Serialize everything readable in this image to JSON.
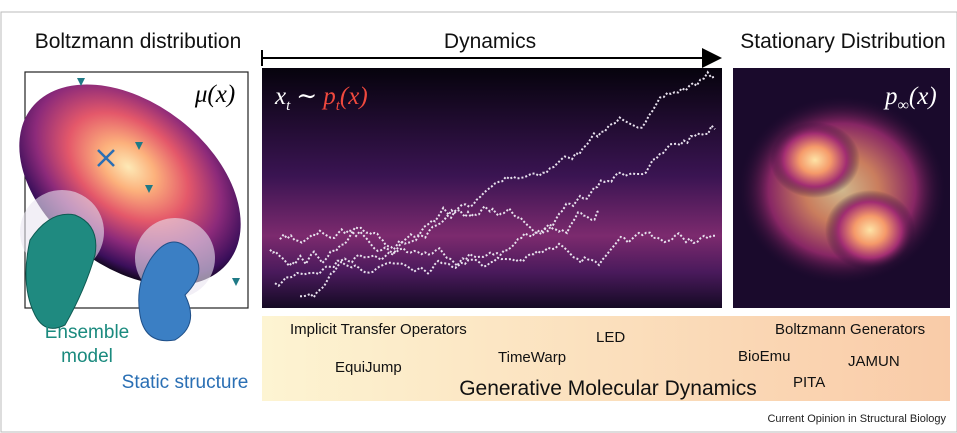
{
  "panels": {
    "left": {
      "title": "Boltzmann distribution",
      "symbol": "μ(x)",
      "ensemble": [
        "Ensemble",
        "model"
      ],
      "static": "Static structure"
    },
    "middle": {
      "title": "Dynamics",
      "symbol": {
        "x": "x",
        "xsub": "t",
        "sim": "∼",
        "p": "p",
        "psub": "t",
        "arg": "(x)"
      }
    },
    "right": {
      "title": "Stationary Distribution",
      "symbol": {
        "p": "p",
        "sub": "∞",
        "arg": "(x)"
      }
    }
  },
  "methods": {
    "items": [
      "Implicit Transfer Operators",
      "LED",
      "Boltzmann Generators",
      "EquiJump",
      "TimeWarp",
      "BioEmu",
      "JAMUN",
      "PITA"
    ],
    "caption": "Generative Molecular Dynamics"
  },
  "footer": "Current Opinion in Structural Biology"
}
